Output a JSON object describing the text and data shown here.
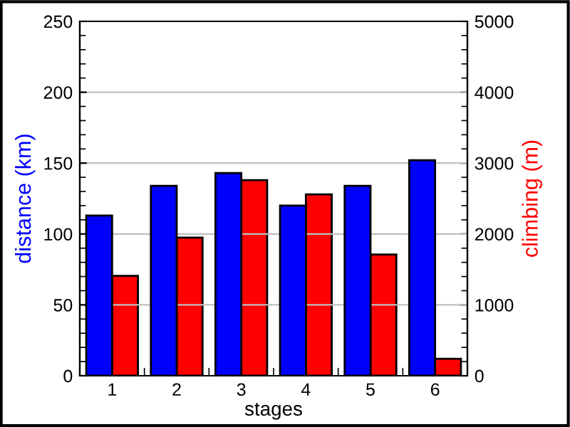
{
  "chart_data": {
    "type": "bar",
    "categories": [
      "1",
      "2",
      "3",
      "4",
      "5",
      "6"
    ],
    "xlabel": "stages",
    "ylabel": "distance (km)",
    "y2label": "climbing (m)",
    "series": [
      {
        "color": "#0000ff",
        "values": [
          113,
          134,
          143,
          120,
          134,
          152
        ]
      },
      {
        "color": "#ff0000",
        "values": [
          1410,
          1950,
          2760,
          2560,
          1710,
          240
        ],
        "axis": "y2"
      }
    ],
    "ylim": [
      0,
      250
    ],
    "yticks": [
      0,
      50,
      100,
      150,
      200,
      250
    ],
    "y2lim": [
      0,
      5000
    ],
    "y2ticks": [
      0,
      1000,
      2000,
      3000,
      4000,
      5000
    ],
    "grid": "y",
    "legend": false
  }
}
